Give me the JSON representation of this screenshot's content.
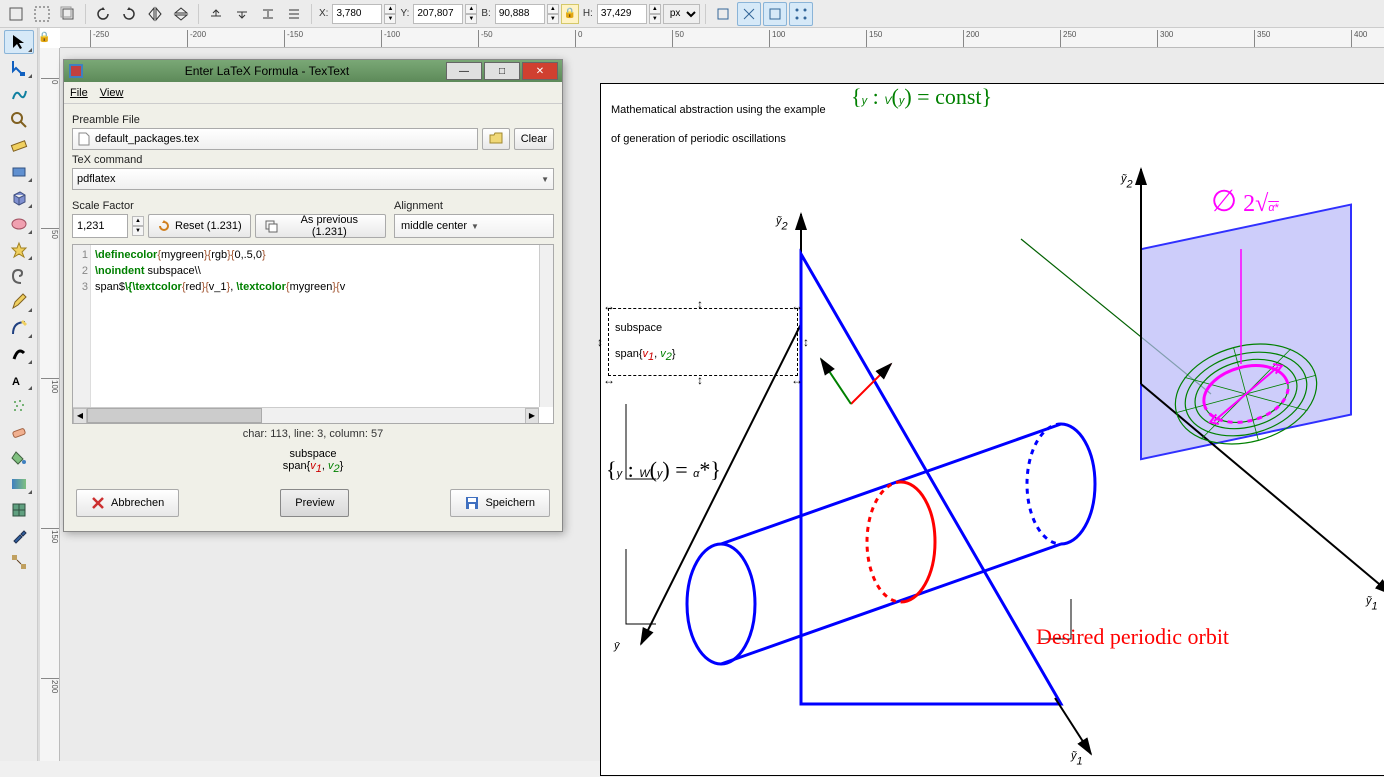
{
  "toolbar": {
    "coords": {
      "x_label": "X:",
      "x": "3,780",
      "y_label": "Y:",
      "y": "207,807",
      "w_label": "B:",
      "w": "90,888",
      "h_label": "H:",
      "h": "37,429",
      "unit": "px"
    }
  },
  "ruler": {
    "horizontal": [
      "-250",
      "-200",
      "-150",
      "-100",
      "-50",
      "0",
      "50",
      "100",
      "150",
      "200",
      "250",
      "300",
      "350",
      "400"
    ],
    "vertical": [
      "0",
      "50",
      "100",
      "150",
      "200"
    ]
  },
  "dialog": {
    "title": "Enter LaTeX Formula - TexText",
    "menu": {
      "file": "File",
      "view": "View"
    },
    "preamble_label": "Preamble File",
    "preamble_value": "default_packages.tex",
    "clear": "Clear",
    "tex_cmd_label": "TeX command",
    "tex_cmd_value": "pdflatex",
    "scale_label": "Scale Factor",
    "scale_value": "1,231",
    "reset_label": "Reset (1.231)",
    "asprev_label": "As previous (1.231)",
    "align_label": "Alignment",
    "align_value": "middle center",
    "code_lines": [
      "\\definecolor{mygreen}{rgb}{0,.5,0}",
      "\\noindent subspace\\\\",
      "span$\\{\\textcolor{red}{v_1}, \\textcolor{mygreen}{v"
    ],
    "status": "char: 113, line: 3, column: 57",
    "preview": {
      "line1": "subspace",
      "line2a": "span{",
      "v1": "v",
      "v1sub": "1",
      "comma": ", ",
      "v2": "v",
      "v2sub": "2",
      "close": "}"
    },
    "btn_cancel": "Abbrechen",
    "btn_preview": "Preview",
    "btn_save": "Speichern"
  },
  "drawing": {
    "title_l1": "Mathematical abstraction using the example",
    "title_l2": "of generation of periodic oscillations",
    "y2_tilde": "ỹ",
    "y2_sub": "2",
    "y1_tilde": "ỹ",
    "y1_sub": "1",
    "ybar": "ȳ",
    "subspace": "subspace",
    "span_expr": "span{",
    "v1": "v",
    "v1sub": "1",
    "v_comma": ", ",
    "v2": "v",
    "v2sub": "2",
    "span_close": "}",
    "V_expr": "{y : V(y) = const}",
    "W_expr": "{y : W(y) = α*}",
    "diameter": "∅ ",
    "diameter_val": "2√α*",
    "orbit": "Desired periodic orbit",
    "colors": {
      "blue": "#0000ff",
      "red": "#ff0000",
      "green": "#008000",
      "darkgreen": "#006000",
      "magenta": "#ff00ff",
      "plane_fill": "#b8b8f8",
      "plane_stroke": "#3030ff"
    }
  }
}
